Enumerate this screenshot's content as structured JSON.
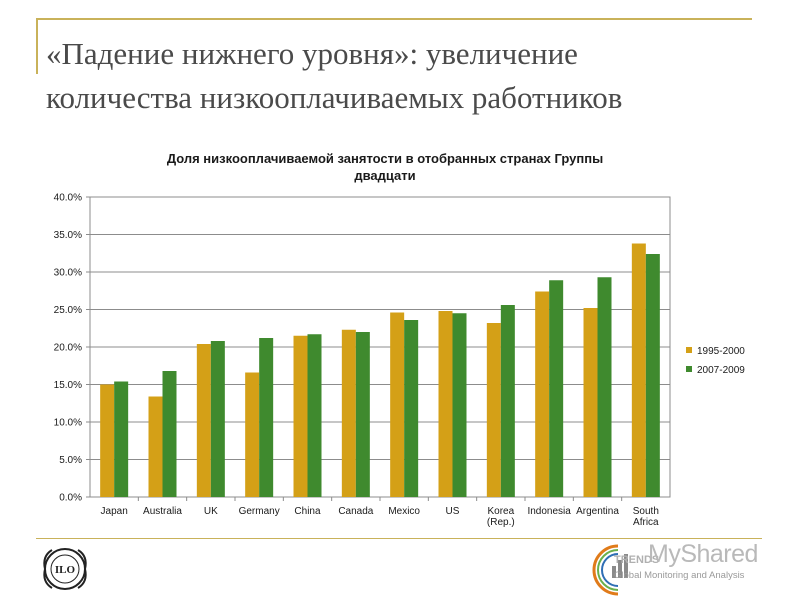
{
  "slide": {
    "title_line1": "«Падение нижнего уровня»: увеличение",
    "title_line2": "количества низкооплачиваемых работников"
  },
  "logos": {
    "ilo_label": "ILO",
    "watermark": "MyShared",
    "trends_label": "TRENDS",
    "monitoring_label": "Global Monitoring and Analysis"
  },
  "chart_data": {
    "type": "bar",
    "title_line1": "Доля низкооплачиваемой занятости в отобранных странах Группы",
    "title_line2": "двадцати",
    "categories": [
      "Japan",
      "Australia",
      "UK",
      "Germany",
      "China",
      "Canada",
      "Mexico",
      "US",
      "Korea (Rep.)",
      "Indonesia",
      "Argentina",
      "South Africa"
    ],
    "category_lines": [
      [
        "Japan"
      ],
      [
        "Australia"
      ],
      [
        "UK"
      ],
      [
        "Germany"
      ],
      [
        "China"
      ],
      [
        "Canada"
      ],
      [
        "Mexico"
      ],
      [
        "US"
      ],
      [
        "Korea",
        "(Rep.)"
      ],
      [
        "Indonesia"
      ],
      [
        "Argentina"
      ],
      [
        "South",
        "Africa"
      ]
    ],
    "series": [
      {
        "name": "1995-2000",
        "color": "#d4a017",
        "values": [
          15.0,
          13.4,
          20.4,
          16.6,
          21.5,
          22.3,
          24.6,
          24.8,
          23.2,
          27.4,
          25.2,
          33.8
        ]
      },
      {
        "name": "2007-2009",
        "color": "#3f8a2e",
        "values": [
          15.4,
          16.8,
          20.8,
          21.2,
          21.7,
          22.0,
          23.6,
          24.5,
          25.6,
          28.9,
          29.3,
          32.4
        ]
      }
    ],
    "ylim": [
      0,
      40
    ],
    "yticks": [
      "0.0%",
      "5.0%",
      "10.0%",
      "15.0%",
      "20.0%",
      "25.0%",
      "30.0%",
      "35.0%",
      "40.0%"
    ],
    "grid": true,
    "legend": "right"
  }
}
